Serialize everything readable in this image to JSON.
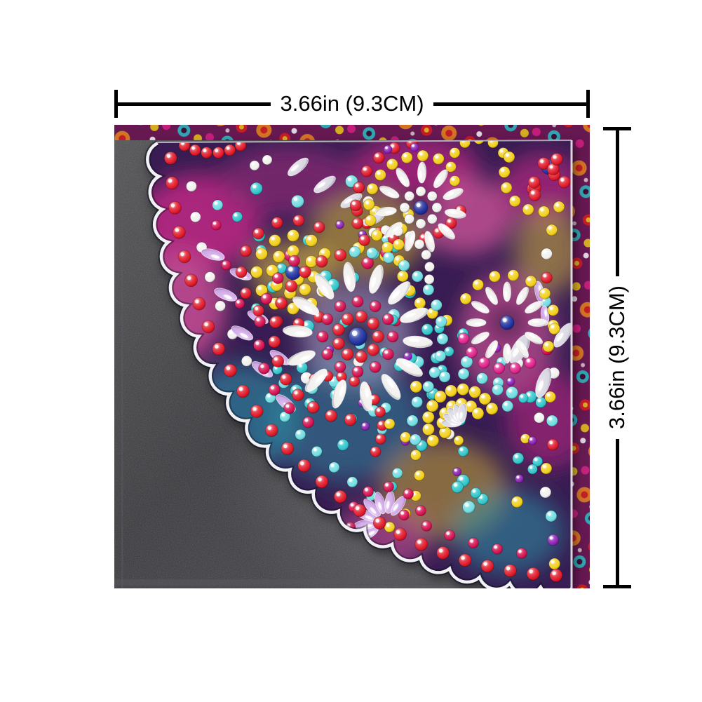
{
  "annotations": {
    "width_label": "3.66in (9.3CM)",
    "height_label": "3.66in (9.3CM)",
    "line_color": "#000000"
  },
  "photo": {
    "alt": "diamond painting mandala corner bookmark lying on dark gray leather with floral fabric behind",
    "colors": {
      "leather_base": "#3a3a3e",
      "leather_light": "#4d4d53",
      "fabric_base": "#6d1a55",
      "bookmark_base": "#371e52",
      "edge_white": "#f2f2f6"
    },
    "fabric_accents": [
      "#f08a1e",
      "#e02020",
      "#2fc6cb",
      "#f3cf1a",
      "#ffffff",
      "#e0218a"
    ],
    "gem_palette": {
      "red": "#e01828",
      "crimson": "#d40f4f",
      "magenta": "#e0218a",
      "pink": "#ef5fa7",
      "teal": "#2fc6cb",
      "aqua": "#6fdde2",
      "yellow": "#f3cf1a",
      "gold": "#eab308",
      "white": "#f2f0ee",
      "silver": "#d8d7e2",
      "lavender": "#cfa5e6",
      "navy": "#1d2f9e",
      "purple": "#8b1fb4",
      "orange": "#f08a1e"
    }
  }
}
